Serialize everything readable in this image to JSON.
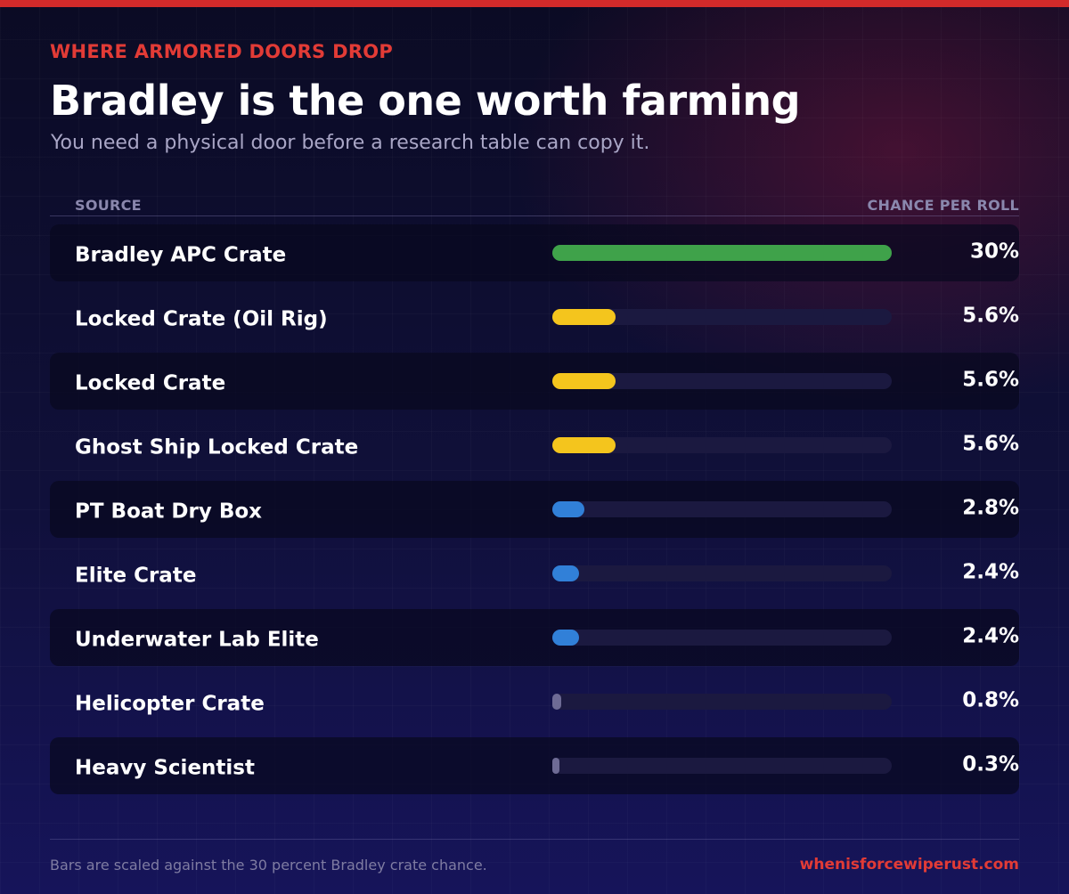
{
  "header": {
    "kicker": "WHERE ARMORED DOORS DROP",
    "title": "Bradley is the one worth farming",
    "subtitle": "You need a physical door before a research table can copy it."
  },
  "columns": {
    "source": "SOURCE",
    "chance": "CHANCE PER ROLL"
  },
  "chart_data": {
    "type": "bar",
    "orientation": "horizontal",
    "title": "Bradley is the one worth farming",
    "xlabel": "CHANCE PER ROLL",
    "ylabel": "SOURCE",
    "xlim": [
      0,
      30
    ],
    "categories": [
      "Bradley APC Crate",
      "Locked Crate (Oil Rig)",
      "Locked Crate",
      "Ghost Ship Locked Crate",
      "PT Boat Dry Box",
      "Elite Crate",
      "Underwater Lab Elite",
      "Helicopter Crate",
      "Heavy Scientist"
    ],
    "values": [
      30,
      5.6,
      5.6,
      5.6,
      2.8,
      2.4,
      2.4,
      0.8,
      0.3
    ],
    "value_labels": [
      "30%",
      "5.6%",
      "5.6%",
      "5.6%",
      "2.8%",
      "2.4%",
      "2.4%",
      "0.8%",
      "0.3%"
    ],
    "bar_colors": [
      "#3fa24a",
      "#f4c51d",
      "#f4c51d",
      "#f4c51d",
      "#3180d8",
      "#3180d8",
      "#3180d8",
      "#6e6b95",
      "#6e6b95"
    ],
    "grid": false,
    "legend": "none"
  },
  "footer": {
    "note": "Bars are scaled against the 30 percent Bradley crate chance.",
    "site": "whenisforcewiperust.com"
  },
  "colors": {
    "accent_red": "#e23b36",
    "top_bar": "#d22a2a",
    "track": "#1b1940"
  }
}
